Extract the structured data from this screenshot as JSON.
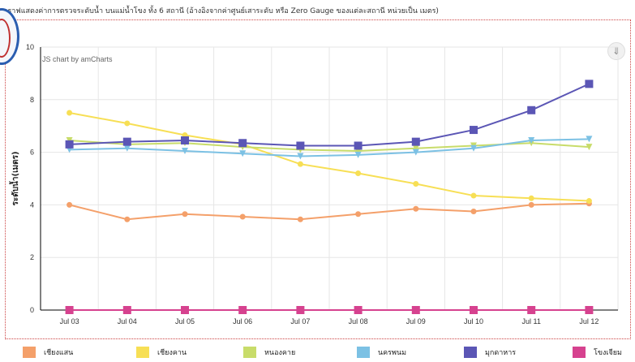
{
  "page": {
    "title": "กราฟแสดงค่าการตรวจระดับน้ำ บนแม่น้ำโขง ทั้ง 6 สถานี (อ้างอิงจากค่าศูนย์เสาระดับ หรือ Zero Gauge ของแต่ละสถานี หน่วยเป็น เมตร)"
  },
  "chart_data": {
    "type": "line",
    "credit": "JS chart by amCharts",
    "ylabel": "ระดับน้ำ(เมตร)",
    "xlabel": "",
    "ylim": [
      0,
      10
    ],
    "y_ticks": [
      0,
      2,
      4,
      6,
      8,
      10
    ],
    "grid": true,
    "legend_position": "bottom",
    "categories": [
      "Jul 03",
      "Jul 04",
      "Jul 05",
      "Jul 06",
      "Jul 07",
      "Jul 08",
      "Jul 09",
      "Jul 10",
      "Jul 11",
      "Jul 12"
    ],
    "series": [
      {
        "name": "เชียงแสน",
        "color": "#f4a06a",
        "marker": "circle",
        "values": [
          4.0,
          3.45,
          3.65,
          3.55,
          3.45,
          3.65,
          3.85,
          3.75,
          4.0,
          4.05
        ]
      },
      {
        "name": "เชียงคาน",
        "color": "#f7df55",
        "marker": "circle",
        "values": [
          7.5,
          7.1,
          6.65,
          6.3,
          5.55,
          5.2,
          4.8,
          4.35,
          4.25,
          4.15
        ]
      },
      {
        "name": "หนองคาย",
        "color": "#c8dc6a",
        "marker": "triangle-down",
        "values": [
          6.45,
          6.3,
          6.35,
          6.2,
          6.1,
          6.05,
          6.15,
          6.25,
          6.35,
          6.2
        ]
      },
      {
        "name": "นครพนม",
        "color": "#7cc1e4",
        "marker": "triangle-down",
        "values": [
          6.1,
          6.15,
          6.05,
          5.95,
          5.85,
          5.9,
          6.0,
          6.15,
          6.45,
          6.5
        ]
      },
      {
        "name": "มุกดาหาร",
        "color": "#5b56b5",
        "marker": "square",
        "values": [
          6.3,
          6.4,
          6.45,
          6.35,
          6.25,
          6.25,
          6.4,
          6.85,
          7.6,
          8.6
        ]
      },
      {
        "name": "โขงเจียม",
        "color": "#d6428f",
        "marker": "square",
        "values": [
          0,
          0,
          0,
          0,
          0,
          0,
          0,
          0,
          0,
          0
        ]
      }
    ]
  }
}
